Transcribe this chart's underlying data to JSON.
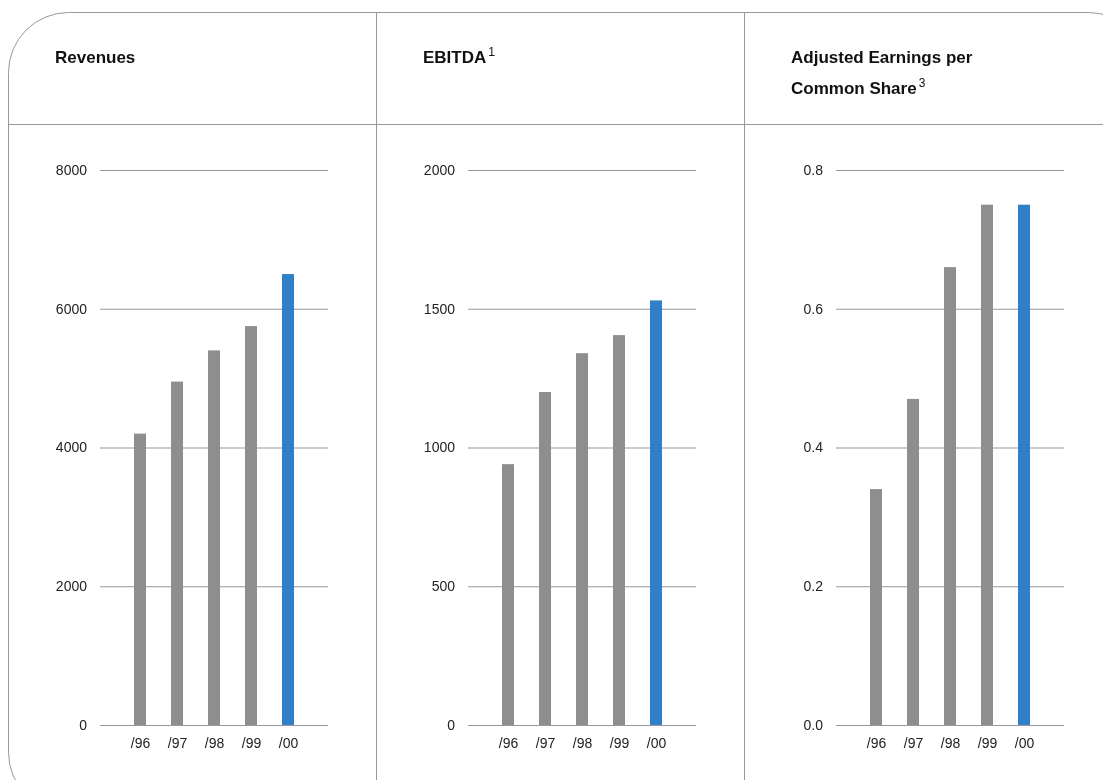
{
  "chart_data": [
    {
      "type": "bar",
      "title": "Revenues",
      "categories": [
        "/96",
        "/97",
        "/98",
        "/99",
        "/00"
      ],
      "values": [
        4200,
        4950,
        5400,
        5750,
        6500
      ],
      "colors": [
        "#8e8e8e",
        "#8e8e8e",
        "#8e8e8e",
        "#8e8e8e",
        "#2f80c8"
      ],
      "ylim": [
        0,
        8000
      ],
      "yticks": [
        0,
        2000,
        4000,
        6000,
        8000
      ],
      "grid": "y"
    },
    {
      "type": "bar",
      "title": "EBITDA$^{1}$",
      "categories": [
        "/96",
        "/97",
        "/98",
        "/99",
        "/00"
      ],
      "values": [
        940,
        1200,
        1340,
        1405,
        1530
      ],
      "colors": [
        "#8e8e8e",
        "#8e8e8e",
        "#8e8e8e",
        "#8e8e8e",
        "#2f80c8"
      ],
      "ylim": [
        0,
        2000
      ],
      "yticks": [
        0,
        500,
        1000,
        1500,
        2000
      ],
      "grid": "y"
    },
    {
      "type": "bar",
      "title": "Adjusted Earnings per Common Share$^{3}$",
      "categories": [
        "/96",
        "/97",
        "/98",
        "/99",
        "/00"
      ],
      "values": [
        0.34,
        0.47,
        0.66,
        0.75,
        0.75
      ],
      "colors": [
        "#8e8e8e",
        "#8e8e8e",
        "#8e8e8e",
        "#8e8e8e",
        "#2f80c8"
      ],
      "ylim": [
        0,
        0.8
      ],
      "yticks": [
        {
          "value": 0,
          "label": "0.0"
        },
        0.2,
        0.4,
        0.6,
        0.8
      ],
      "grid": "y"
    }
  ]
}
